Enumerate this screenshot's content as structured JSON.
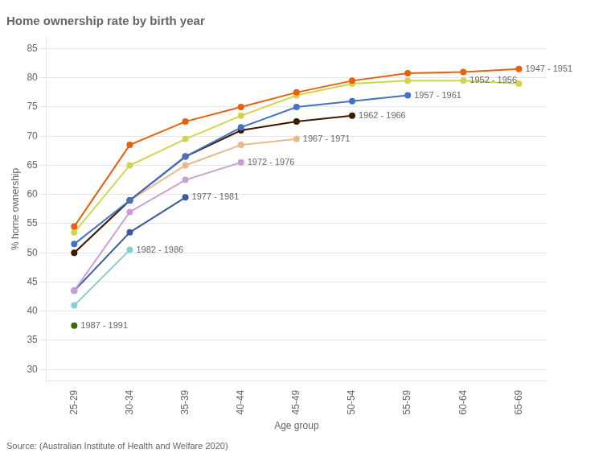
{
  "chart_data": {
    "type": "line",
    "title": "Home ownership rate by birth year",
    "x_label": "Age group",
    "y_label": "% home ownership",
    "source": "Source: (Australian Institute of Health and Welfare 2020)",
    "categories": [
      "25-29",
      "30-34",
      "35-39",
      "40-44",
      "45-49",
      "50-54",
      "55-59",
      "60-64",
      "65-69"
    ],
    "series": [
      {
        "name": "1947 - 1951",
        "color": "#e8600a",
        "values": [
          54.5,
          68.5,
          72.5,
          75.0,
          77.5,
          79.5,
          80.8,
          81.0,
          81.5
        ]
      },
      {
        "name": "1952 - 1956",
        "color": "#d4d44a",
        "values": [
          53.5,
          65.0,
          69.5,
          73.5,
          77.0,
          79.0,
          79.5,
          79.5,
          79.0
        ]
      },
      {
        "name": "1957 - 1961",
        "color": "#4472c4",
        "values": [
          51.5,
          59.0,
          66.5,
          71.5,
          75.0,
          76.0,
          77.0,
          null,
          null
        ]
      },
      {
        "name": "1962 - 1966",
        "color": "#3b1a00",
        "values": [
          50.0,
          59.0,
          66.5,
          71.0,
          72.5,
          73.5,
          null,
          null,
          null
        ]
      },
      {
        "name": "1967 - 1971",
        "color": "#e8b88a",
        "values": [
          50.0,
          59.0,
          65.0,
          68.5,
          69.5,
          null,
          null,
          null,
          null
        ]
      },
      {
        "name": "1972 - 1976",
        "color": "#c8a0d8",
        "values": [
          43.5,
          57.0,
          62.5,
          65.5,
          null,
          null,
          null,
          null,
          null
        ]
      },
      {
        "name": "1977 - 1981",
        "color": "#3a5ca0",
        "values": [
          43.5,
          53.5,
          59.5,
          null,
          null,
          null,
          null,
          null,
          null
        ]
      },
      {
        "name": "1982 - 1986",
        "color": "#85d0cc",
        "values": [
          41.0,
          50.5,
          null,
          null,
          null,
          null,
          null,
          null,
          null
        ]
      },
      {
        "name": "1987 - 1991",
        "color": "#3a6b00",
        "values": [
          37.5,
          null,
          null,
          null,
          null,
          null,
          null,
          null,
          null
        ]
      }
    ],
    "annotations": [
      {
        "text": "1947 - 1951",
        "x": "65-69",
        "y": 81.5
      },
      {
        "text": "1952 - 1956",
        "x": "60-64",
        "y": 79.5
      },
      {
        "text": "1957 - 1961",
        "x": "55-59",
        "y": 77.0
      },
      {
        "text": "1962 - 1966",
        "x": "50-54",
        "y": 73.5
      },
      {
        "text": "1967 - 1971",
        "x": "45-49",
        "y": 69.5
      },
      {
        "text": "1972 - 1976",
        "x": "40-44",
        "y": 65.5
      },
      {
        "text": "1977 - 1981",
        "x": "35-39",
        "y": 59.5
      },
      {
        "text": "1982 - 1986",
        "x": "30-34",
        "y": 50.5
      },
      {
        "text": "1987 - 1991",
        "x": "25-29",
        "y": 37.5
      }
    ],
    "ylim": [
      28,
      87
    ],
    "yticks": [
      30,
      35,
      40,
      45,
      50,
      55,
      60,
      65,
      70,
      75,
      80,
      85
    ],
    "grid": true
  }
}
